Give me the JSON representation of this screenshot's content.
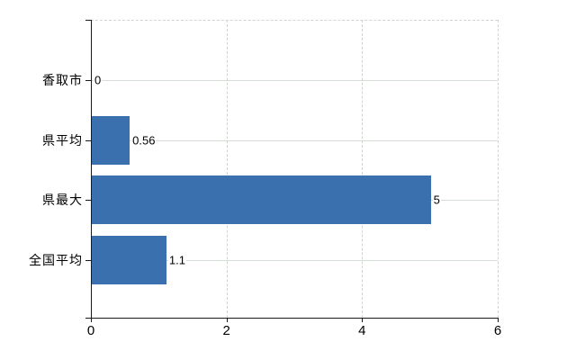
{
  "chart_data": {
    "type": "bar",
    "orientation": "horizontal",
    "title": "",
    "xlabel": "",
    "ylabel": "",
    "categories": [
      "香取市",
      "県平均",
      "県最大",
      "全国平均"
    ],
    "values": [
      0,
      0.56,
      5,
      1.1
    ],
    "value_labels": [
      "0",
      "0.56",
      "5",
      "1.1"
    ],
    "x_ticks": [
      "0",
      "2",
      "4",
      "6"
    ],
    "x_tick_values": [
      0,
      2,
      4,
      6
    ],
    "xlim": [
      0,
      6
    ],
    "grid": true,
    "legend": false,
    "colors": {
      "bar": "#3B70AF",
      "grid_horizontal": "#D7DDD7",
      "grid_vertical": "#CCD4CC",
      "plot_border_dashed": "#D8D0D4",
      "axis": "#1B1B1B",
      "text": "#000000",
      "background": "#FFFFFF"
    }
  }
}
